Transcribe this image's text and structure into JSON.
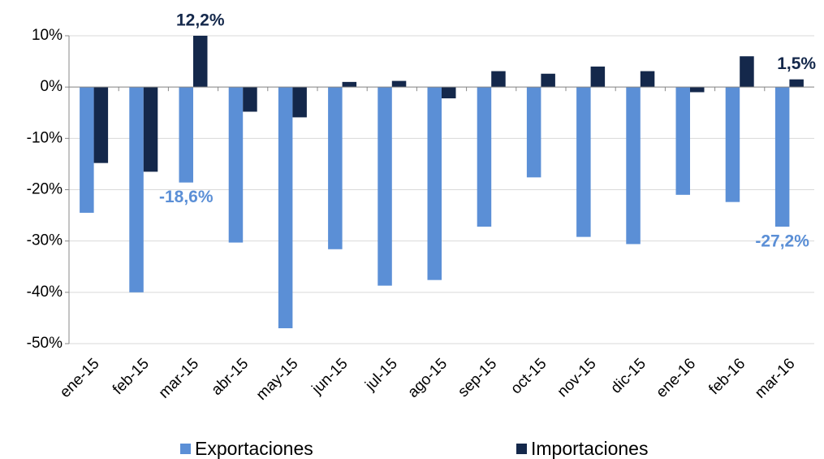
{
  "chart_data": {
    "type": "bar",
    "categories": [
      "ene-15",
      "feb-15",
      "mar-15",
      "abr-15",
      "may-15",
      "jun-15",
      "jul-15",
      "ago-15",
      "sep-15",
      "oct-15",
      "nov-15",
      "dic-15",
      "ene-16",
      "feb-16",
      "mar-16"
    ],
    "series": [
      {
        "name": "Exportaciones",
        "color": "#5b8fd6",
        "values": [
          -24.5,
          -40,
          -18.6,
          -30.3,
          -47,
          -31.6,
          -38.7,
          -37.6,
          -27.2,
          -17.6,
          -29.2,
          -30.6,
          -21,
          -22.4,
          -27.2
        ],
        "value_labels": [
          null,
          null,
          "-18,6%",
          null,
          null,
          null,
          null,
          null,
          null,
          null,
          null,
          null,
          null,
          null,
          "-27,2%"
        ]
      },
      {
        "name": "Importaciones",
        "color": "#14284b",
        "values": [
          -14.8,
          -16.5,
          12.2,
          -4.8,
          -5.9,
          1,
          1.2,
          -2.2,
          3.1,
          2.6,
          4,
          3.1,
          -1,
          6,
          1.5
        ],
        "value_labels": [
          null,
          null,
          "12,2%",
          null,
          null,
          null,
          null,
          null,
          null,
          null,
          null,
          null,
          null,
          null,
          "1,5%"
        ]
      }
    ],
    "ylim": [
      -50,
      10
    ],
    "yticks": [
      {
        "value": -50,
        "label": "-50%"
      },
      {
        "value": -40,
        "label": "-40%"
      },
      {
        "value": -30,
        "label": "-30%"
      },
      {
        "value": -20,
        "label": "-20%"
      },
      {
        "value": -10,
        "label": "-10%"
      },
      {
        "value": 0,
        "label": "0%"
      },
      {
        "value": 10,
        "label": "10%"
      }
    ],
    "grid": true,
    "legend": "bottom"
  }
}
